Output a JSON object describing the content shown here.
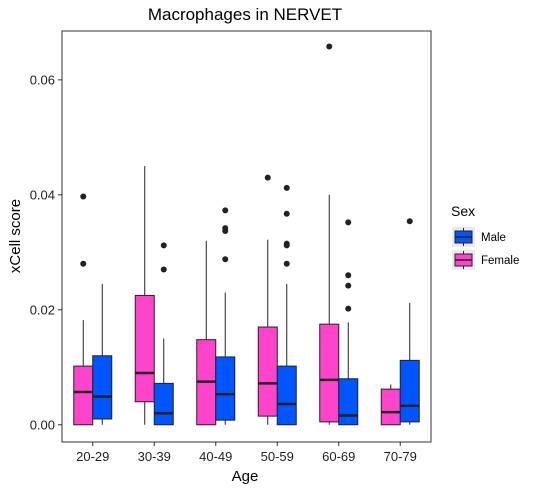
{
  "chart_data": {
    "type": "box",
    "title": "Macrophages in NERVET",
    "xlabel": "Age",
    "ylabel": "xCell score",
    "ylim": [
      -0.003,
      0.0685
    ],
    "yticks": [
      0.0,
      0.02,
      0.04,
      0.06
    ],
    "ytick_labels": [
      "0.00",
      "0.02",
      "0.04",
      "0.06"
    ],
    "categories": [
      "20-29",
      "30-39",
      "40-49",
      "50-59",
      "60-69",
      "70-79"
    ],
    "legend": {
      "title": "Sex",
      "position": "right",
      "entries": [
        {
          "name": "Male",
          "color": "#0055FF"
        },
        {
          "name": "Female",
          "color": "#FF44CC"
        }
      ]
    },
    "series": [
      {
        "name": "Female",
        "color": "#FF44CC",
        "boxes": [
          {
            "min": 0.0,
            "q1": 0.0,
            "median": 0.0057,
            "q3": 0.0102,
            "max": 0.0182,
            "outliers": [
              0.028,
              0.0397
            ]
          },
          {
            "min": 0.0,
            "q1": 0.004,
            "median": 0.009,
            "q3": 0.0225,
            "max": 0.045,
            "outliers": []
          },
          {
            "min": 0.0,
            "q1": 0.0,
            "median": 0.0075,
            "q3": 0.0148,
            "max": 0.032,
            "outliers": []
          },
          {
            "min": 0.0,
            "q1": 0.0015,
            "median": 0.0072,
            "q3": 0.017,
            "max": 0.0322,
            "outliers": [
              0.043
            ]
          },
          {
            "min": 0.0,
            "q1": 0.0005,
            "median": 0.0078,
            "q3": 0.0175,
            "max": 0.04,
            "outliers": [
              0.0658
            ]
          },
          {
            "min": 0.0,
            "q1": 0.0,
            "median": 0.0022,
            "q3": 0.0062,
            "max": 0.007,
            "outliers": []
          }
        ]
      },
      {
        "name": "Male",
        "color": "#0055FF",
        "boxes": [
          {
            "min": 0.0,
            "q1": 0.001,
            "median": 0.0049,
            "q3": 0.012,
            "max": 0.0245,
            "outliers": []
          },
          {
            "min": 0.0,
            "q1": 0.0,
            "median": 0.002,
            "q3": 0.0072,
            "max": 0.015,
            "outliers": [
              0.027,
              0.0312
            ]
          },
          {
            "min": 0.0,
            "q1": 0.0008,
            "median": 0.0053,
            "q3": 0.0118,
            "max": 0.023,
            "outliers": [
              0.0288,
              0.0337,
              0.0342,
              0.0373
            ]
          },
          {
            "min": 0.0,
            "q1": 0.0,
            "median": 0.0036,
            "q3": 0.0102,
            "max": 0.0245,
            "outliers": [
              0.028,
              0.0312,
              0.0315,
              0.0367,
              0.0412
            ]
          },
          {
            "min": 0.0,
            "q1": 0.0,
            "median": 0.0016,
            "q3": 0.008,
            "max": 0.0178,
            "outliers": [
              0.0202,
              0.0242,
              0.026,
              0.0352
            ]
          },
          {
            "min": 0.0,
            "q1": 0.0005,
            "median": 0.0033,
            "q3": 0.0112,
            "max": 0.0212,
            "outliers": [
              0.0354
            ]
          }
        ]
      }
    ]
  }
}
